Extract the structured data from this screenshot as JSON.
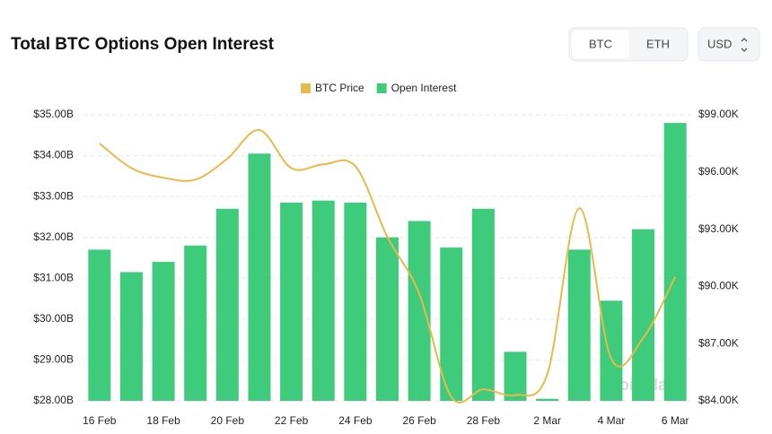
{
  "header": {
    "title": "Total BTC Options Open Interest",
    "tabs": [
      "BTC",
      "ETH"
    ],
    "currency": "USD"
  },
  "chart_data": {
    "type": "combo",
    "categories": [
      "16 Feb",
      null,
      "18 Feb",
      null,
      "20 Feb",
      null,
      "22 Feb",
      null,
      "24 Feb",
      null,
      "26 Feb",
      null,
      "28 Feb",
      null,
      "2 Mar",
      null,
      "4 Mar",
      null,
      "6 Mar"
    ],
    "series": [
      {
        "name": "BTC Price",
        "type": "line",
        "axis": "y2",
        "color": "#e9b949",
        "values": [
          97.5,
          96.2,
          95.7,
          95.6,
          96.7,
          98.2,
          96.2,
          96.4,
          96.3,
          92.6,
          89.6,
          84.2,
          84.6,
          84.3,
          85.4,
          94.1,
          86.2,
          87.3,
          90.5
        ]
      },
      {
        "name": "Open Interest",
        "type": "bar",
        "color": "#3ecb7c",
        "values": [
          31.7,
          31.15,
          31.4,
          31.8,
          32.7,
          34.05,
          32.85,
          32.9,
          32.85,
          32.0,
          32.4,
          31.75,
          32.7,
          29.2,
          28.05,
          31.7,
          30.45,
          32.2,
          34.8
        ]
      }
    ],
    "ylim": [
      28,
      35
    ],
    "yticks": [
      {
        "value": 28,
        "label": "$28.00B"
      },
      {
        "value": 29,
        "label": "$29.00B"
      },
      {
        "value": 30,
        "label": "$30.00B"
      },
      {
        "value": 31,
        "label": "$31.00B"
      },
      {
        "value": 32,
        "label": "$32.00B"
      },
      {
        "value": 33,
        "label": "$33.00B"
      },
      {
        "value": 34,
        "label": "$34.00B"
      },
      {
        "value": 35,
        "label": "$35.00B"
      }
    ],
    "y2lim": [
      84,
      99
    ],
    "y2ticks": [
      {
        "value": 84,
        "label": "$84.00K"
      },
      {
        "value": 87,
        "label": "$87.00K"
      },
      {
        "value": 90,
        "label": "$90.00K"
      },
      {
        "value": 93,
        "label": "$93.00K"
      },
      {
        "value": 96,
        "label": "$96.00K"
      },
      {
        "value": 99,
        "label": "$99.00K"
      }
    ],
    "grid": true,
    "watermark": "coinglass"
  }
}
